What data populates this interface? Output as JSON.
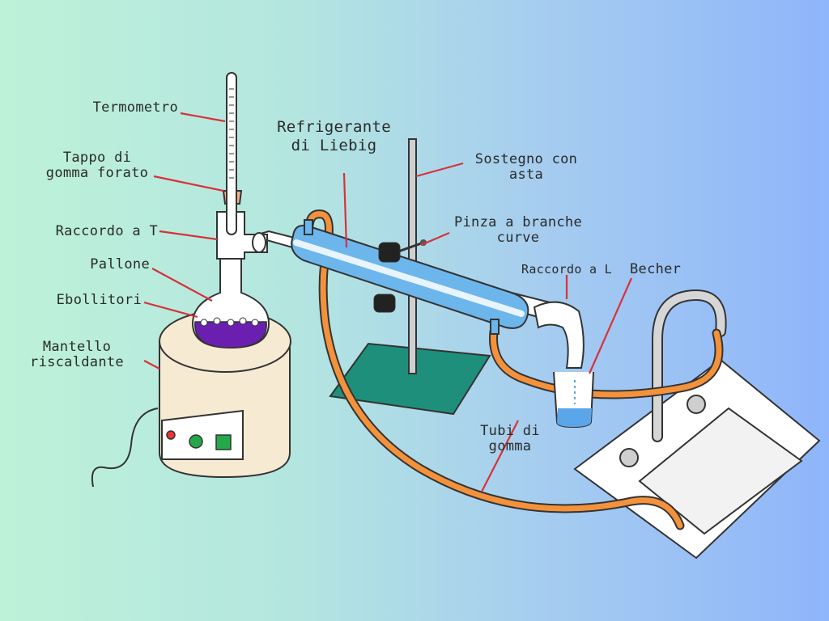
{
  "labels": {
    "termometro": "Termometro",
    "tappo_1": "Tappo di",
    "tappo_2": "gomma forato",
    "raccordo_t": "Raccordo a T",
    "pallone": "Pallone",
    "ebollitori": "Ebollitori",
    "mantello_1": "Mantello",
    "mantello_2": "riscaldante",
    "refrigerante_1": "Refrigerante",
    "refrigerante_2": "di Liebig",
    "sostegno_1": "Sostegno con",
    "sostegno_2": "asta",
    "pinza_1": "Pinza a branche",
    "pinza_2": "curve",
    "raccordo_l": "Raccordo a L",
    "becher": "Becher",
    "tubi_1": "Tubi di",
    "tubi_2": "gomma"
  },
  "colors": {
    "leader_line": "#d8313a",
    "rubber_tube": "#f4913b",
    "condenser": "#6db6ec",
    "liquid": "#6b1fb0",
    "stand_base": "#1e8f7a",
    "mantle": "#f7ead3",
    "stopper": "#f7b08d"
  }
}
